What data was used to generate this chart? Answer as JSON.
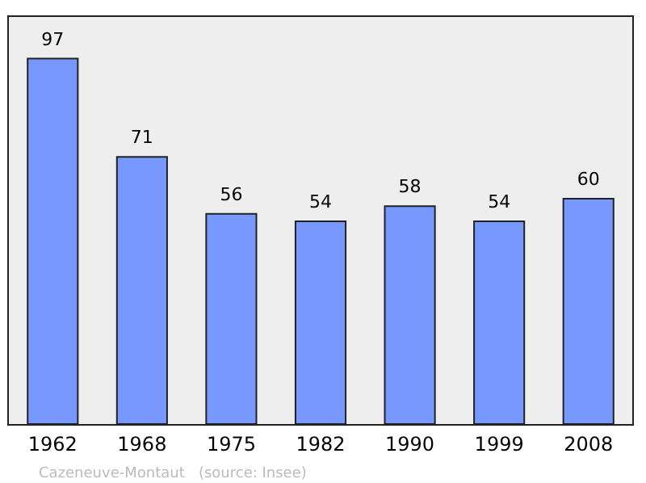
{
  "chart_data": {
    "type": "bar",
    "categories": [
      "1962",
      "1968",
      "1975",
      "1982",
      "1990",
      "1999",
      "2008"
    ],
    "values": [
      97,
      71,
      56,
      54,
      58,
      54,
      60
    ],
    "color": "#7799ff",
    "data_labels": true,
    "ylim": [
      0,
      108
    ],
    "tick_labels": "x",
    "annotations": [
      "Cazeneuve-Montaut   (source: Insee)"
    ]
  }
}
